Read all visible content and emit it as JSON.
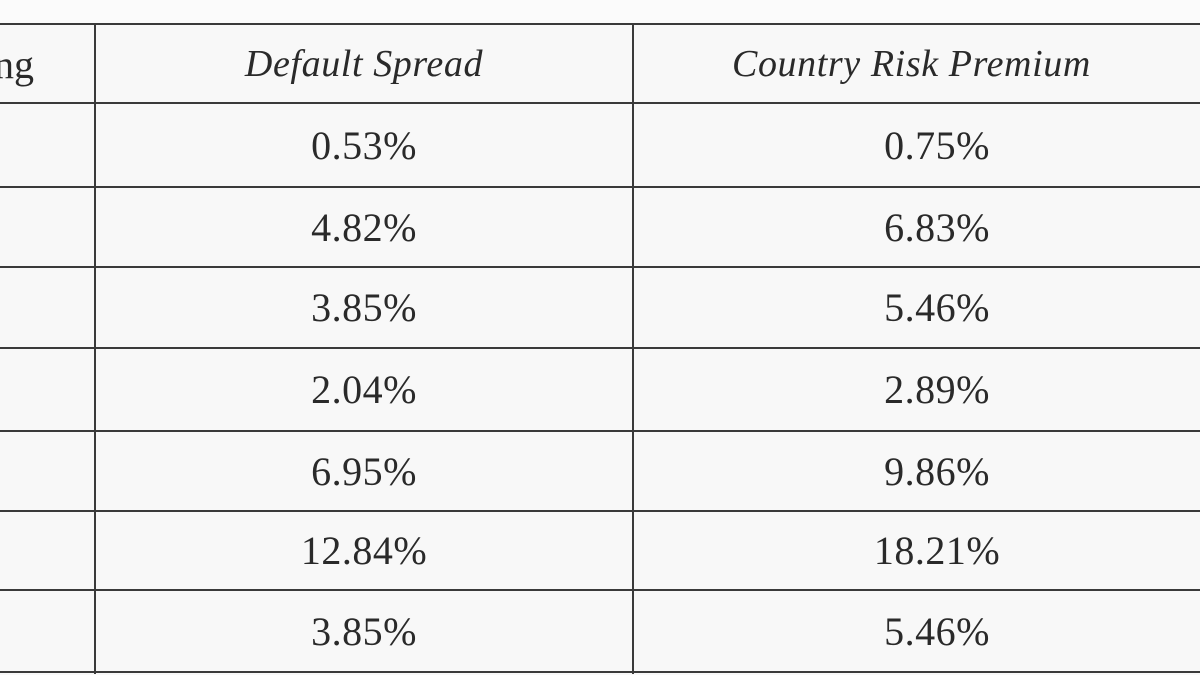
{
  "table": {
    "headers": {
      "rating_partial": "ng",
      "default_spread": "Default Spread",
      "country_risk_premium": "Country Risk Premium"
    },
    "rows": [
      {
        "default_spread": "0.53%",
        "country_risk_premium": "0.75%"
      },
      {
        "default_spread": "4.82%",
        "country_risk_premium": "6.83%"
      },
      {
        "default_spread": "3.85%",
        "country_risk_premium": "5.46%"
      },
      {
        "default_spread": "2.04%",
        "country_risk_premium": "2.89%"
      },
      {
        "default_spread": "6.95%",
        "country_risk_premium": "9.86%"
      },
      {
        "default_spread": "12.84%",
        "country_risk_premium": "18.21%"
      },
      {
        "default_spread": "3.85%",
        "country_risk_premium": "5.46%"
      }
    ]
  }
}
